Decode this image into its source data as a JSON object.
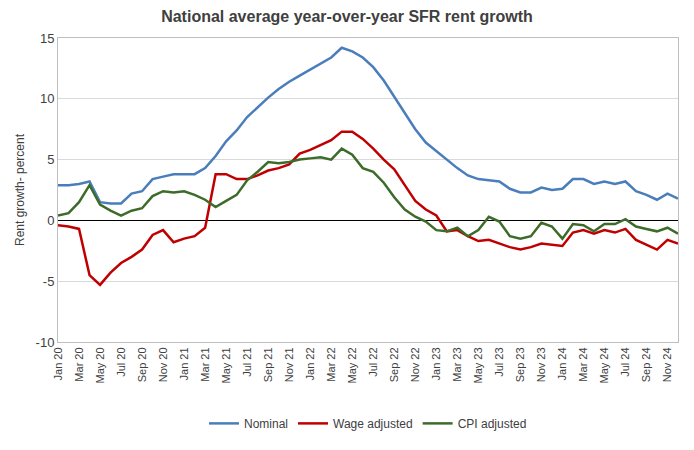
{
  "chart_data": {
    "type": "line",
    "title": "National average year-over-year SFR rent growth",
    "y_label": "Rent growth- percent",
    "categories": [
      "Jan 20",
      null,
      "Mar 20",
      null,
      "May 20",
      null,
      "Jul 20",
      null,
      "Sep 20",
      null,
      "Nov 20",
      null,
      "Jan 21",
      null,
      "Mar 21",
      null,
      "May 21",
      null,
      "Jul 21",
      null,
      "Sep 21",
      null,
      "Nov 21",
      null,
      "Jan 22",
      null,
      "Mar 22",
      null,
      "May 22",
      null,
      "Jul 22",
      null,
      "Sep 22",
      null,
      "Nov 22",
      null,
      "Jan 23",
      null,
      "Mar 23",
      null,
      "May 23",
      null,
      "Jul 23",
      null,
      "Sep 23",
      null,
      "Nov 23",
      null,
      "Jan 24",
      null,
      "Mar 24",
      null,
      "May 24",
      null,
      "Jul 24",
      null,
      "Sep 24",
      null,
      "Nov 24",
      null
    ],
    "series": [
      {
        "name": "Nominal",
        "color": "#4a7ebb",
        "values": [
          2.9,
          2.9,
          3.0,
          3.2,
          1.5,
          1.4,
          1.4,
          2.2,
          2.4,
          3.4,
          3.6,
          3.8,
          3.8,
          3.8,
          4.3,
          5.3,
          6.5,
          7.4,
          8.5,
          9.3,
          10.1,
          10.8,
          11.4,
          11.9,
          12.4,
          12.9,
          13.4,
          14.2,
          13.9,
          13.4,
          12.6,
          11.5,
          10.2,
          8.9,
          7.5,
          6.4,
          5.7,
          5.0,
          4.3,
          3.7,
          3.4,
          3.3,
          3.2,
          2.6,
          2.3,
          2.3,
          2.7,
          2.5,
          2.6,
          3.4,
          3.4,
          3.0,
          3.2,
          3.0,
          3.2,
          2.4,
          2.1,
          1.7,
          2.2,
          1.8
        ]
      },
      {
        "name": "Wage adjusted",
        "color": "#c00000",
        "values": [
          -0.4,
          -0.5,
          -0.7,
          -4.5,
          -5.3,
          -4.3,
          -3.5,
          -3.0,
          -2.4,
          -1.2,
          -0.8,
          -1.8,
          -1.5,
          -1.3,
          -0.6,
          3.8,
          3.8,
          3.4,
          3.4,
          3.7,
          4.1,
          4.3,
          4.6,
          5.5,
          5.8,
          6.2,
          6.6,
          7.3,
          7.3,
          6.7,
          5.9,
          5.0,
          4.2,
          2.9,
          1.6,
          0.9,
          0.4,
          -0.9,
          -0.8,
          -1.3,
          -1.7,
          -1.6,
          -1.9,
          -2.2,
          -2.4,
          -2.2,
          -1.9,
          -2.0,
          -2.1,
          -1.0,
          -0.8,
          -1.1,
          -0.8,
          -1.0,
          -0.7,
          -1.6,
          -2.0,
          -2.4,
          -1.6,
          -1.9
        ]
      },
      {
        "name": "CPI adjusted",
        "color": "#3d6b2a",
        "values": [
          0.4,
          0.6,
          1.5,
          2.9,
          1.3,
          0.8,
          0.4,
          0.8,
          1.0,
          2.0,
          2.4,
          2.3,
          2.4,
          2.1,
          1.7,
          1.1,
          1.6,
          2.1,
          3.3,
          4.0,
          4.8,
          4.7,
          4.8,
          5.0,
          5.1,
          5.2,
          5.0,
          5.9,
          5.4,
          4.3,
          4.0,
          3.1,
          1.9,
          0.9,
          0.3,
          -0.1,
          -0.8,
          -0.9,
          -0.6,
          -1.3,
          -0.8,
          0.3,
          -0.1,
          -1.3,
          -1.5,
          -1.3,
          -0.2,
          -0.5,
          -1.5,
          -0.3,
          -0.4,
          -0.9,
          -0.3,
          -0.3,
          0.1,
          -0.5,
          -0.7,
          -0.9,
          -0.6,
          -1.1
        ]
      }
    ],
    "ylim": [
      -10,
      15
    ],
    "yticks": [
      -10,
      -5,
      0,
      5,
      10,
      15
    ],
    "grid": true,
    "legend": "bottom"
  }
}
